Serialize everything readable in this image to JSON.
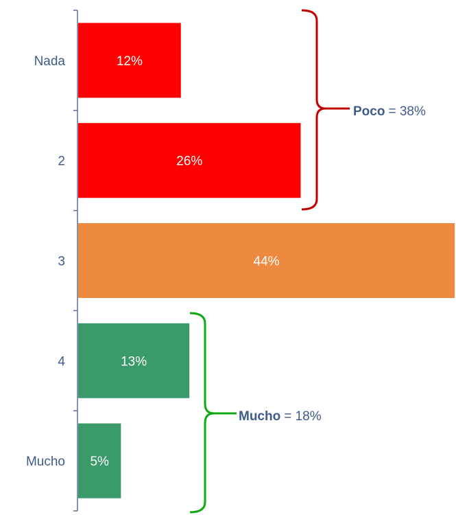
{
  "chart_data": {
    "type": "bar",
    "orientation": "horizontal",
    "categories": [
      "Nada",
      "2",
      "3",
      "4",
      "Mucho"
    ],
    "values": [
      12,
      26,
      44,
      13,
      5
    ],
    "value_labels": [
      "12%",
      "26%",
      "44%",
      "13%",
      "5%"
    ],
    "colors": [
      "#ff0000",
      "#ff0000",
      "#ed8a3f",
      "#3a9a6a",
      "#3a9a6a"
    ],
    "annotations": [
      {
        "label": "Poco",
        "text": "= 38%",
        "color": "#c00000"
      },
      {
        "label": "Mucho",
        "text": "= 18%",
        "color": "#12a812"
      }
    ]
  }
}
